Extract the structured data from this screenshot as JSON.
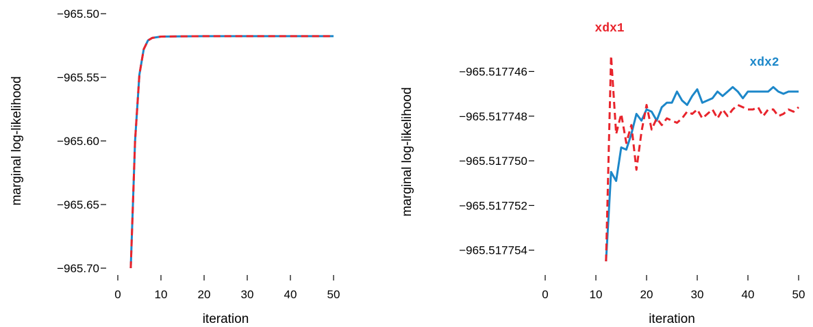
{
  "colors": {
    "xdx1": "#e8242c",
    "xdx2": "#1c87c9"
  },
  "chart_data": [
    {
      "type": "line",
      "xlabel": "iteration",
      "ylabel": "marginal log-likelihood",
      "xlim": [
        0,
        50
      ],
      "ylim": [
        -965.7,
        -965.5
      ],
      "x_ticks": [
        0,
        10,
        20,
        30,
        40,
        50
      ],
      "x_tick_labels": [
        "0",
        "10",
        "20",
        "30",
        "40",
        "50"
      ],
      "y_ticks": [
        -965.7,
        -965.65,
        -965.6,
        -965.55,
        -965.5
      ],
      "y_tick_labels": [
        "−965.70",
        "−965.65",
        "−965.60",
        "−965.55",
        "−965.50"
      ],
      "grid": false,
      "series": [
        {
          "key": "xdx2",
          "style": "solid",
          "x": [
            3,
            4,
            5,
            6,
            7,
            8,
            10,
            15,
            20,
            30,
            40,
            50
          ],
          "y": [
            -965.7,
            -965.6,
            -965.548,
            -965.528,
            -965.521,
            -965.519,
            -965.518,
            -965.5178,
            -965.5177,
            -965.5177,
            -965.5177,
            -965.5177
          ]
        },
        {
          "key": "xdx1",
          "style": "dashed",
          "x": [
            3,
            4,
            5,
            6,
            7,
            8,
            10,
            15,
            20,
            30,
            40,
            50
          ],
          "y": [
            -965.7,
            -965.6,
            -965.548,
            -965.528,
            -965.521,
            -965.519,
            -965.518,
            -965.5178,
            -965.5177,
            -965.5177,
            -965.5177,
            -965.5177
          ]
        }
      ]
    },
    {
      "type": "line",
      "xlabel": "iteration",
      "ylabel": "marginal log-likelihood",
      "xlim": [
        0,
        50
      ],
      "ylim": [
        -965.5177545,
        -965.5177447
      ],
      "x_ticks": [
        0,
        10,
        20,
        30,
        40,
        50
      ],
      "x_tick_labels": [
        "0",
        "10",
        "20",
        "30",
        "40",
        "50"
      ],
      "y_ticks": [
        -965.517754,
        -965.517752,
        -965.51775,
        -965.517748,
        -965.517746
      ],
      "y_tick_labels": [
        "−965.517754",
        "−965.517752",
        "−965.517750",
        "−965.517748",
        "−965.517746"
      ],
      "grid": false,
      "series": [
        {
          "key": "xdx2",
          "name": "xdx2",
          "style": "solid",
          "label_text": "xdx2",
          "x": [
            12,
            13,
            14,
            15,
            16,
            17,
            18,
            19,
            20,
            21,
            22,
            23,
            24,
            25,
            26,
            27,
            28,
            29,
            30,
            31,
            32,
            33,
            34,
            35,
            36,
            37,
            38,
            39,
            40,
            41,
            42,
            43,
            44,
            45,
            46,
            47,
            48,
            49,
            50
          ],
          "y": [
            -965.5177545,
            -965.5177505,
            -965.5177509,
            -965.5177494,
            -965.5177495,
            -965.5177488,
            -965.5177479,
            -965.5177482,
            -965.5177477,
            -965.5177478,
            -965.5177482,
            -965.5177476,
            -965.5177474,
            -965.5177474,
            -965.5177469,
            -965.5177473,
            -965.5177475,
            -965.5177471,
            -965.5177468,
            -965.5177474,
            -965.5177473,
            -965.5177472,
            -965.5177469,
            -965.5177471,
            -965.5177469,
            -965.5177467,
            -965.5177469,
            -965.5177472,
            -965.5177469,
            -965.5177469,
            -965.5177469,
            -965.5177469,
            -965.5177469,
            -965.5177467,
            -965.5177469,
            -965.517747,
            -965.5177469,
            -965.5177469,
            -965.5177469
          ]
        },
        {
          "key": "xdx1",
          "name": "xdx1",
          "style": "dashed",
          "label_text": "xdx1",
          "x": [
            12,
            13,
            14,
            15,
            16,
            17,
            18,
            19,
            20,
            21,
            22,
            23,
            24,
            25,
            26,
            27,
            28,
            29,
            30,
            31,
            32,
            33,
            34,
            35,
            36,
            37,
            38,
            39,
            40,
            41,
            42,
            43,
            44,
            45,
            46,
            47,
            48,
            49,
            50
          ],
          "y": [
            -965.5177545,
            -965.5177453,
            -965.5177488,
            -965.5177479,
            -965.5177492,
            -965.5177484,
            -965.5177504,
            -965.5177487,
            -965.5177475,
            -965.5177486,
            -965.5177481,
            -965.5177484,
            -965.5177481,
            -965.5177482,
            -965.5177483,
            -965.5177481,
            -965.5177478,
            -965.5177479,
            -965.5177477,
            -965.5177481,
            -965.5177479,
            -965.5177477,
            -965.5177481,
            -965.5177477,
            -965.517748,
            -965.5177477,
            -965.5177475,
            -965.5177476,
            -965.5177477,
            -965.5177477,
            -965.5177476,
            -965.517748,
            -965.5177477,
            -965.5177477,
            -965.517748,
            -965.5177479,
            -965.5177477,
            -965.5177478,
            -965.5177476
          ]
        }
      ]
    }
  ]
}
